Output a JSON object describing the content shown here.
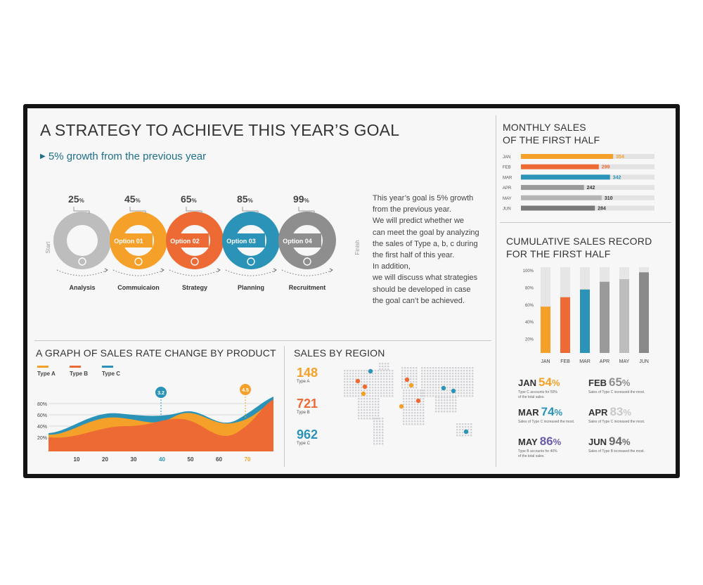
{
  "main": {
    "title": "A STRATEGY TO ACHIEVE THIS YEAR’S GOAL",
    "subtitle": "5% growth from the previous year",
    "start_label": "Start",
    "finish_label": "Finish",
    "rings": [
      {
        "pct": "25",
        "label": "",
        "icon": "money-bag-icon",
        "caption": "Analysis",
        "color": "#bdbdbd"
      },
      {
        "pct": "45",
        "label": "Option 01",
        "icon": "flask-icon",
        "caption": "Commuicaion",
        "color": "#f5a029"
      },
      {
        "pct": "65",
        "label": "Option 02",
        "icon": "clock-icon",
        "caption": "Strategy",
        "color": "#ee6a35"
      },
      {
        "pct": "85",
        "label": "Option 03",
        "icon": "database-icon",
        "caption": "Planning",
        "color": "#2b93b8"
      },
      {
        "pct": "99",
        "label": "Option 04",
        "icon": "lightbulb-icon",
        "caption": "Recruitment",
        "color": "#8e8e8e"
      }
    ],
    "pct_unit": "%",
    "paragraph": [
      "This year’s goal is 5% growth",
      "from the previous year.",
      "We will predict whether we",
      "can meet the goal by analyzing",
      "the sales of Type a, b, c during",
      "the first half of this year.",
      "In addition,",
      "we will discuss what strategies",
      "should be developed in case",
      "the goal can’t be achieved."
    ]
  },
  "monthly": {
    "title_line1": "MONTHLY SALES",
    "title_line2": "OF THE FIRST HALF",
    "max": 400,
    "bars": [
      {
        "month": "JAN",
        "value": 354,
        "color": "#f5a029"
      },
      {
        "month": "FEB",
        "value": 299,
        "color": "#ee6a35"
      },
      {
        "month": "MAR",
        "value": 342,
        "color": "#2b93b8"
      },
      {
        "month": "APR",
        "value": 242,
        "color": "#9a9a9a"
      },
      {
        "month": "MAY",
        "value": 310,
        "color": "#b5b5b5"
      },
      {
        "month": "JUN",
        "value": 284,
        "color": "#7a7a7a"
      }
    ]
  },
  "cumulative": {
    "title_line1": "CUMULATIVE SALES RECORD",
    "title_line2": "FOR THE FIRST HALF",
    "yticks": [
      "100%",
      "80%",
      "60%",
      "40%",
      "20%"
    ],
    "bars": [
      {
        "month": "JAN",
        "value": 54,
        "color": "#f5a029"
      },
      {
        "month": "FEB",
        "value": 65,
        "color": "#ee6a35"
      },
      {
        "month": "MAR",
        "value": 74,
        "color": "#2b93b8"
      },
      {
        "month": "APR",
        "value": 83,
        "color": "#9a9a9a"
      },
      {
        "month": "MAY",
        "value": 86,
        "color": "#bdbdbd"
      },
      {
        "month": "JUN",
        "value": 94,
        "color": "#8a8a8a"
      }
    ],
    "stats": [
      {
        "month": "JAN",
        "pct": "54",
        "color": "#f5a029",
        "note1": "Type C accounts for 50%",
        "note2": "of the total sales."
      },
      {
        "month": "FEB",
        "pct": "65",
        "color": "#8e8e8e",
        "note1": "Sales of Type C increased the most.",
        "note2": ""
      },
      {
        "month": "MAR",
        "pct": "74",
        "color": "#2b93b8",
        "note1": "Sales of Type C increased the most.",
        "note2": ""
      },
      {
        "month": "APR",
        "pct": "83",
        "color": "#c8c8c8",
        "note1": "Sales of Type C increased the most.",
        "note2": ""
      },
      {
        "month": "MAY",
        "pct": "86",
        "color": "#6a5aa8",
        "note1": "Type B accounts for 40%",
        "note2": "of the total sales."
      },
      {
        "month": "JUN",
        "pct": "94",
        "color": "#6a6a6a",
        "note1": "Sales of Type B increased the most.",
        "note2": ""
      }
    ],
    "pct_unit": "%"
  },
  "graph": {
    "title": "A GRAPH OF SALES RATE CHANGE BY PRODUCT",
    "legend": [
      {
        "name": "Type A",
        "color": "#f5a029"
      },
      {
        "name": "Type B",
        "color": "#ee6a35"
      },
      {
        "name": "Type C",
        "color": "#2b93b8"
      }
    ],
    "yticks": [
      "80%",
      "60%",
      "40%",
      "20%"
    ],
    "xticks": [
      "10",
      "20",
      "30",
      "40",
      "50",
      "60",
      "70"
    ],
    "markers": [
      {
        "label": "3.2",
        "color": "#2b93b8"
      },
      {
        "label": "4.5",
        "color": "#f5a029"
      }
    ]
  },
  "region": {
    "title": "SALES BY REGION",
    "stats": [
      {
        "value": "148",
        "type": "Type A",
        "color": "#f5a029"
      },
      {
        "value": "721",
        "type": "Type B",
        "color": "#ee6a35"
      },
      {
        "value": "962",
        "type": "Type C",
        "color": "#2b93b8"
      }
    ]
  }
}
